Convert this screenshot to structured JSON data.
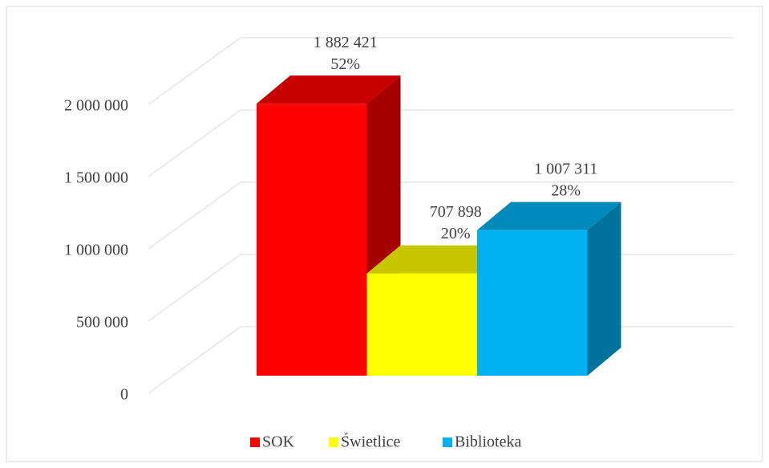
{
  "chart_data": {
    "type": "bar3d",
    "series": [
      {
        "name": "SOK",
        "color": "#ff0000",
        "values": [
          1882421
        ],
        "value_labels": [
          "1 882 421"
        ],
        "percents": [
          52
        ],
        "percent_labels": [
          "52%"
        ]
      },
      {
        "name": "Świetlice",
        "color": "#ffff00",
        "values": [
          707898
        ],
        "value_labels": [
          "707 898"
        ],
        "percents": [
          20
        ],
        "percent_labels": [
          "20%"
        ]
      },
      {
        "name": "Biblioteka",
        "color": "#00b0f0",
        "values": [
          1007311
        ],
        "value_labels": [
          "1 007 311"
        ],
        "percents": [
          28
        ],
        "percent_labels": [
          "28%"
        ]
      }
    ],
    "ylim": [
      0,
      2000000
    ],
    "yticks": [
      0,
      {
        "value": 500000,
        "label": "500 000"
      },
      {
        "value": 1000000,
        "label": "1 000 000"
      },
      {
        "value": 1500000,
        "label": "1 500 000"
      },
      {
        "value": 2000000,
        "label": "2 000 000"
      }
    ],
    "grid": true,
    "legend": "bottom"
  }
}
